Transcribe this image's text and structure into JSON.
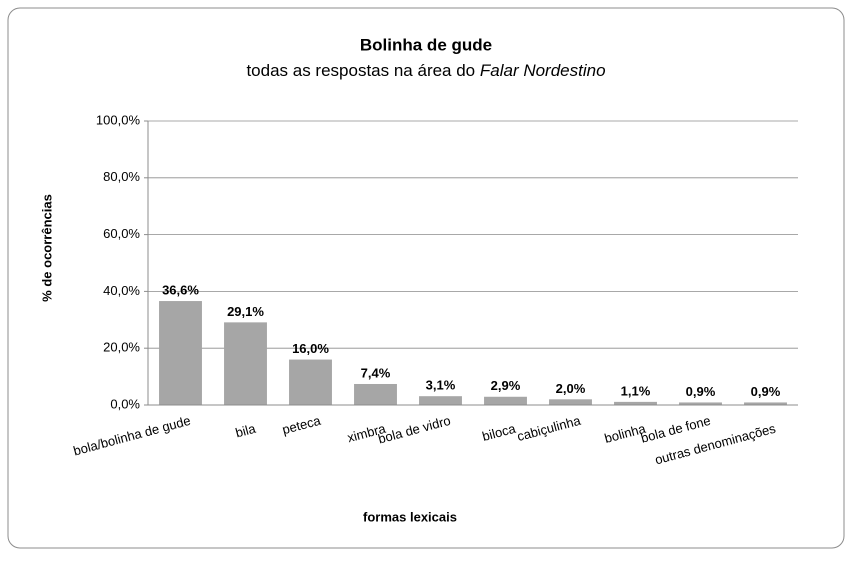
{
  "chart_data": {
    "type": "bar",
    "title": "Bolinha de gude",
    "subtitle": "todas as respostas na área do ",
    "subtitle_italic": "Falar Nordestino",
    "y_label": "% de ocorrências",
    "x_label": "formas lexicais",
    "categories": [
      "bola/bolinha de gude",
      "bila",
      "peteca",
      "ximbra",
      "bola de vidro",
      "biloca",
      "cabiçulinha",
      "bolinha",
      "bola de fone",
      "outras denominações"
    ],
    "values": [
      36.6,
      29.1,
      16.0,
      7.4,
      3.1,
      2.9,
      2.0,
      1.1,
      0.9,
      0.9
    ],
    "value_labels": [
      "36,6%",
      "29,1%",
      "16,0%",
      "7,4%",
      "3,1%",
      "2,9%",
      "2,0%",
      "1,1%",
      "0,9%",
      "0,9%"
    ],
    "color": "#a6a6a6",
    "ylim": [
      0,
      100
    ],
    "yticks": [
      {
        "value": 0,
        "label": "0,0%"
      },
      {
        "value": 20,
        "label": "20,0%"
      },
      {
        "value": 40,
        "label": "40,0%"
      },
      {
        "value": 60,
        "label": "60,0%"
      },
      {
        "value": 80,
        "label": "80,0%"
      },
      {
        "value": 100,
        "label": "100,0%"
      }
    ],
    "grid": true
  }
}
